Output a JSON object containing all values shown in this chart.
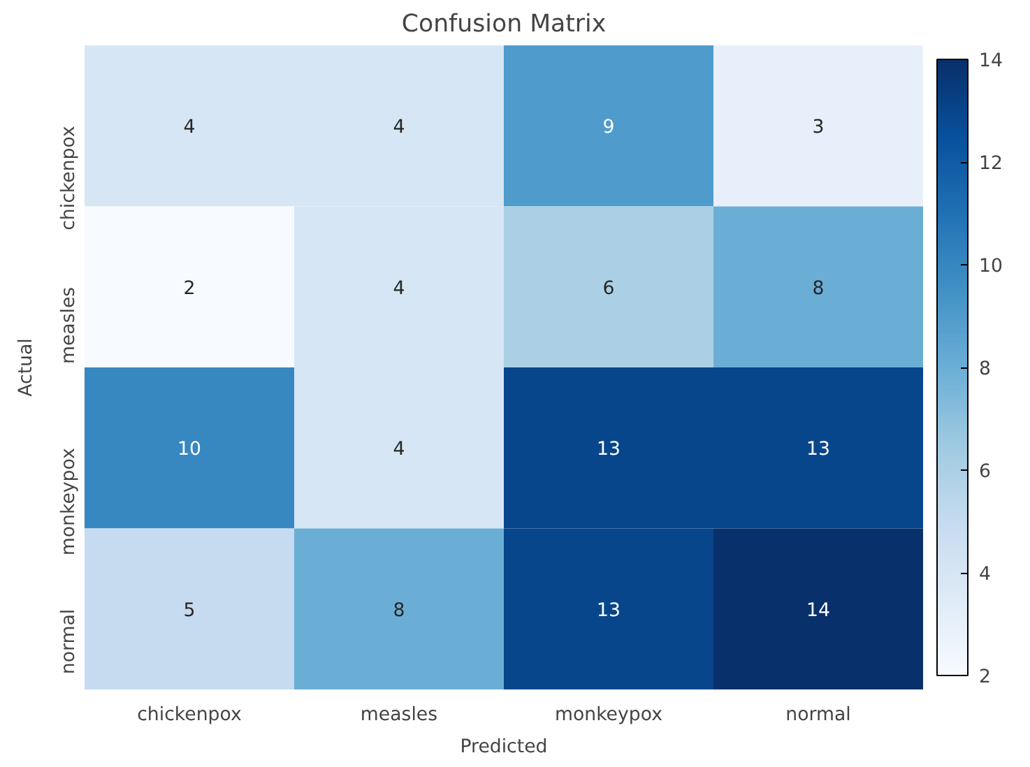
{
  "chart_data": {
    "type": "heatmap",
    "title": "Confusion Matrix",
    "xlabel": "Predicted",
    "ylabel": "Actual",
    "categories": [
      "chickenpox",
      "measles",
      "monkeypox",
      "normal"
    ],
    "y_categories": [
      "chickenpox",
      "measles",
      "monkeypox",
      "normal"
    ],
    "cells": [
      [
        4,
        4,
        9,
        3
      ],
      [
        2,
        4,
        6,
        8
      ],
      [
        10,
        4,
        13,
        13
      ],
      [
        5,
        8,
        13,
        14
      ]
    ],
    "clim": [
      2,
      14
    ],
    "cticks": [
      2,
      4,
      6,
      8,
      10,
      12,
      14
    ],
    "data_labels": true
  }
}
